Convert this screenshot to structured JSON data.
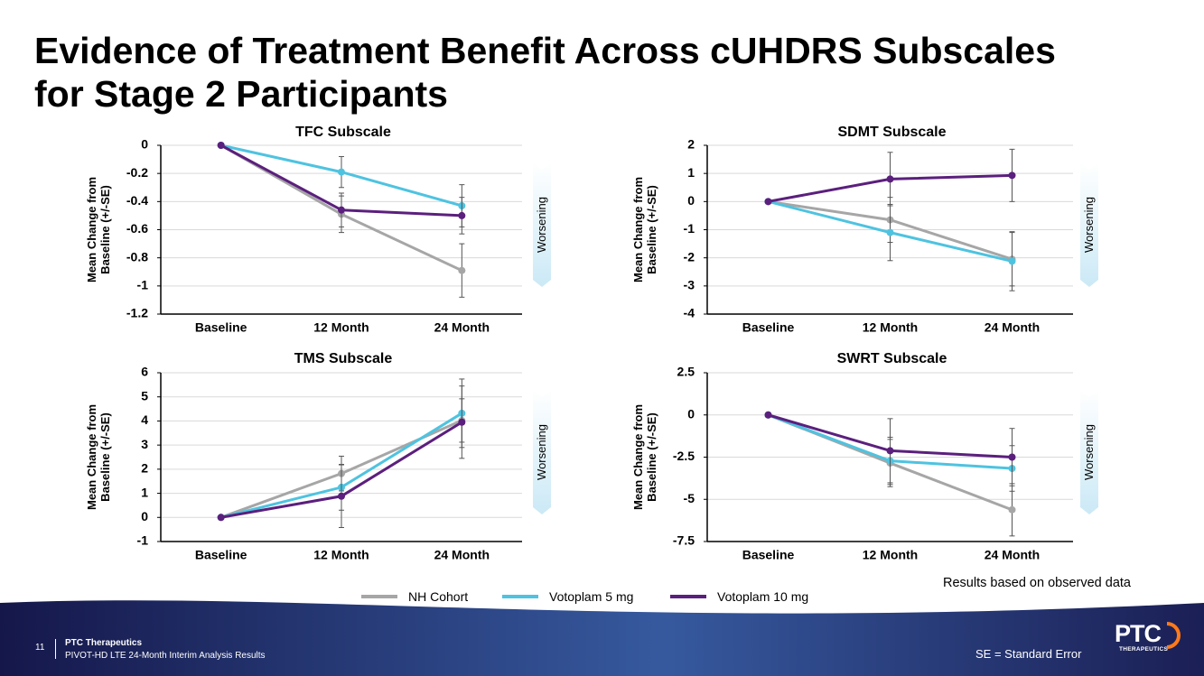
{
  "title": {
    "line1": "Evidence of Treatment Benefit Across cUHDRS Subscales",
    "line2": "for Stage 2 Participants"
  },
  "series_styles": [
    {
      "name": "NH Cohort",
      "color": "#a6a6a6"
    },
    {
      "name": "Votoplam 5 mg",
      "color": "#4ec3e0"
    },
    {
      "name": "Votoplam 10 mg",
      "color": "#5b1f7d"
    }
  ],
  "chart_data": [
    {
      "type": "line",
      "title": "TFC Subscale",
      "ylabel": [
        "Mean Change from",
        "Baseline (+/-SE)"
      ],
      "categories": [
        "Baseline",
        "12 Month",
        "24 Month"
      ],
      "yticks": [
        0,
        -0.2,
        -0.4,
        -0.6,
        -0.8,
        -1,
        -1.2
      ],
      "ytick_labels": [
        "0",
        "-0.2",
        "-0.4",
        "-0.6",
        "-0.8",
        "-1",
        "-1.2"
      ],
      "ylim": [
        -1.2,
        0
      ],
      "annotation": "Worsening",
      "series": [
        {
          "name": "NH Cohort",
          "values": [
            0,
            -0.49,
            -0.89
          ],
          "errors": [
            0,
            0.13,
            0.19
          ]
        },
        {
          "name": "Votoplam 5 mg",
          "values": [
            0,
            -0.19,
            -0.43
          ],
          "errors": [
            0,
            0.11,
            0.15
          ]
        },
        {
          "name": "Votoplam 10 mg",
          "values": [
            0,
            -0.46,
            -0.5
          ],
          "errors": [
            0,
            0.12,
            0.13
          ]
        }
      ]
    },
    {
      "type": "line",
      "title": "SDMT Subscale",
      "ylabel": [
        "Mean Change from",
        "Baseline (+/-SE)"
      ],
      "categories": [
        "Baseline",
        "12 Month",
        "24 Month"
      ],
      "yticks": [
        2,
        1,
        0,
        -1,
        -2,
        -3,
        -4
      ],
      "ytick_labels": [
        "2",
        "1",
        "0",
        "-1",
        "-2",
        "-3",
        "-4"
      ],
      "ylim": [
        -4,
        2
      ],
      "annotation": "Worsening",
      "series": [
        {
          "name": "NH Cohort",
          "values": [
            0,
            -0.65,
            -2.05
          ],
          "errors": [
            0,
            0.8,
            0.95
          ]
        },
        {
          "name": "Votoplam 5 mg",
          "values": [
            0,
            -1.1,
            -2.12
          ],
          "errors": [
            0,
            1.0,
            1.05
          ]
        },
        {
          "name": "Votoplam 10 mg",
          "values": [
            0,
            0.8,
            0.93
          ],
          "errors": [
            0,
            0.95,
            0.93
          ]
        }
      ]
    },
    {
      "type": "line",
      "title": "TMS Subscale",
      "ylabel": [
        "Mean Change from",
        "Baseline (+/-SE)"
      ],
      "categories": [
        "Baseline",
        "12 Month",
        "24 Month"
      ],
      "yticks": [
        6,
        5,
        4,
        3,
        2,
        1,
        0,
        -1
      ],
      "ytick_labels": [
        "6",
        "5",
        "4",
        "3",
        "2",
        "1",
        "0",
        "-1"
      ],
      "ylim": [
        -1,
        6
      ],
      "annotation": "Worsening",
      "series": [
        {
          "name": "NH Cohort",
          "values": [
            0,
            1.82,
            4.02
          ],
          "errors": [
            0,
            0.72,
            0.9
          ]
        },
        {
          "name": "Votoplam 5 mg",
          "values": [
            0,
            1.25,
            4.32
          ],
          "errors": [
            0,
            0.95,
            1.42
          ]
        },
        {
          "name": "Votoplam 10 mg",
          "values": [
            0,
            0.88,
            3.95
          ],
          "errors": [
            0,
            1.3,
            1.5
          ]
        }
      ]
    },
    {
      "type": "line",
      "title": "SWRT Subscale",
      "ylabel": [
        "Mean Change from",
        "Baseline (+/-SE)"
      ],
      "categories": [
        "Baseline",
        "12 Month",
        "24 Month"
      ],
      "yticks": [
        2.5,
        0,
        -2.5,
        -5,
        -7.5
      ],
      "ytick_labels": [
        "2.5",
        "0",
        "-2.5",
        "-5",
        "-7.5"
      ],
      "ylim": [
        -7.5,
        2.5
      ],
      "annotation": "Worsening",
      "series": [
        {
          "name": "NH Cohort",
          "values": [
            0,
            -2.85,
            -5.62
          ],
          "errors": [
            0,
            1.4,
            1.55
          ]
        },
        {
          "name": "Votoplam 5 mg",
          "values": [
            0,
            -2.72,
            -3.17
          ],
          "errors": [
            0,
            1.4,
            1.35
          ]
        },
        {
          "name": "Votoplam 10 mg",
          "values": [
            0,
            -2.12,
            -2.5
          ],
          "errors": [
            0,
            1.9,
            1.7
          ]
        }
      ]
    }
  ],
  "note": "Results based on observed data",
  "footer": {
    "page_number": "11",
    "company": "PTC Therapeutics",
    "subtitle": "PIVOT-HD LTE 24-Month Interim Analysis Results",
    "se_note": "SE = Standard Error",
    "logo_text": "PTC",
    "logo_sub": "THERAPEUTICS"
  }
}
